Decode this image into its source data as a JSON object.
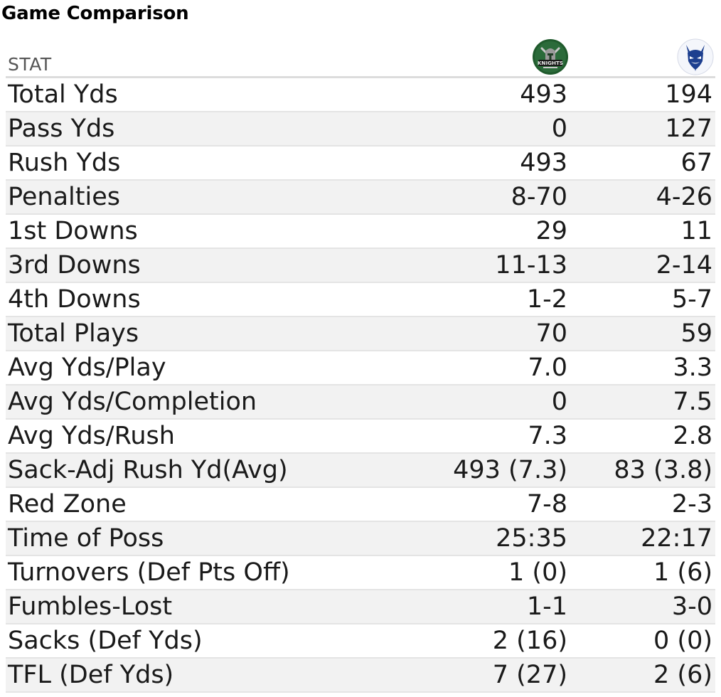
{
  "title": "Game Comparison",
  "header": {
    "stat_label": "STAT",
    "team1_logo": {
      "icon": "knights-logo-icon",
      "text": "KNIGHTS",
      "colors": {
        "primary": "#1f5a2c",
        "secondary": "#9a9a9a"
      }
    },
    "team2_logo": {
      "icon": "blue-devil-logo-icon",
      "colors": {
        "primary": "#1d3f8f",
        "secondary": "#ffffff"
      }
    }
  },
  "rows": [
    {
      "stat": "Total Yds",
      "team1": "493",
      "team2": "194"
    },
    {
      "stat": "Pass Yds",
      "team1": "0",
      "team2": "127"
    },
    {
      "stat": "Rush Yds",
      "team1": "493",
      "team2": "67"
    },
    {
      "stat": "Penalties",
      "team1": "8-70",
      "team2": "4-26"
    },
    {
      "stat": "1st Downs",
      "team1": "29",
      "team2": "11"
    },
    {
      "stat": "3rd Downs",
      "team1": "11-13",
      "team2": "2-14"
    },
    {
      "stat": "4th Downs",
      "team1": "1-2",
      "team2": "5-7"
    },
    {
      "stat": "Total Plays",
      "team1": "70",
      "team2": "59"
    },
    {
      "stat": "Avg Yds/Play",
      "team1": "7.0",
      "team2": "3.3"
    },
    {
      "stat": "Avg Yds/Completion",
      "team1": "0",
      "team2": "7.5"
    },
    {
      "stat": "Avg Yds/Rush",
      "team1": "7.3",
      "team2": "2.8"
    },
    {
      "stat": "Sack-Adj Rush Yd(Avg)",
      "team1": "493 (7.3)",
      "team2": "83 (3.8)"
    },
    {
      "stat": "Red Zone",
      "team1": "7-8",
      "team2": "2-3"
    },
    {
      "stat": "Time of Poss",
      "team1": "25:35",
      "team2": "22:17"
    },
    {
      "stat": "Turnovers (Def Pts Off)",
      "team1": "1 (0)",
      "team2": "1 (6)"
    },
    {
      "stat": "Fumbles-Lost",
      "team1": "1-1",
      "team2": "3-0"
    },
    {
      "stat": "Sacks (Def Yds)",
      "team1": "2 (16)",
      "team2": "0 (0)"
    },
    {
      "stat": "TFL (Def Yds)",
      "team1": "7 (27)",
      "team2": "2 (6)"
    }
  ],
  "colors": {
    "stripe": "#f2f2f2",
    "divider": "#e4e4e4",
    "header_rule": "#dcdcdc"
  }
}
